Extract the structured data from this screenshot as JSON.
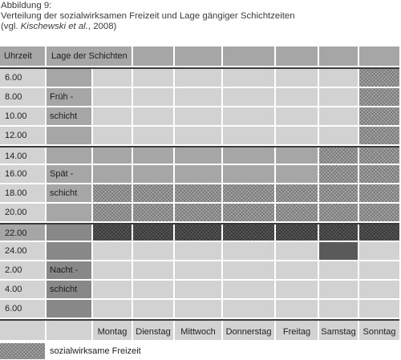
{
  "caption": {
    "line1": "Abbildung 9:",
    "line2": "Verteilung der sozialwirksamen Freizeit und Lage gängiger Schichtzeiten",
    "line3_prefix": "(vgl. ",
    "line3_author": "Kischewski et al.",
    "line3_suffix": ", 2008)"
  },
  "table": {
    "header_time": "Uhrzeit",
    "header_shifts": "Lage der Schichten",
    "times": [
      "6.00",
      "8.00",
      "10.00",
      "12.00",
      "14.00",
      "16.00",
      "18.00",
      "20.00",
      "22.00",
      "24.00",
      "2.00",
      "4.00",
      "6.00"
    ],
    "days": [
      "Montag",
      "Dienstag",
      "Mittwoch",
      "Donnerstag",
      "Freitag",
      "Samstag",
      "Sonntag"
    ],
    "shifts": [
      {
        "line1": "Früh -",
        "line2": "schicht"
      },
      {
        "line1": "Spät -",
        "line2": "schicht"
      },
      {
        "line1": "Nacht -",
        "line2": "schicht"
      }
    ]
  },
  "legend": {
    "label": "sozialwirksame Freizeit"
  },
  "colors": {
    "light_cell": "#d2d2d2",
    "medium_cell": "#a6a6a6",
    "dark_cell": "#888888",
    "divider": "#3a3a3a"
  }
}
